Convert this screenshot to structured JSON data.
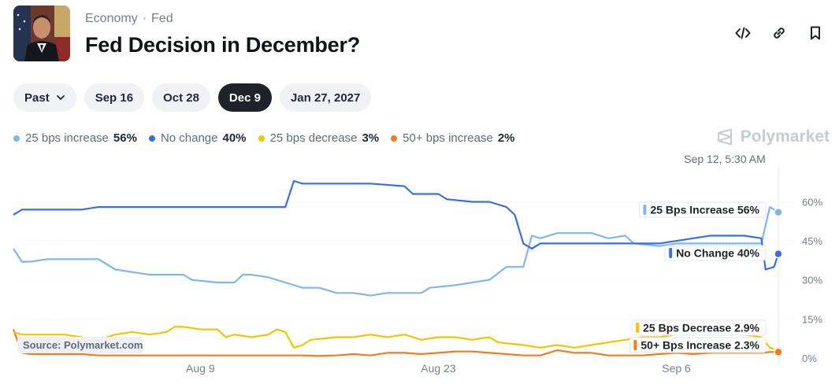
{
  "header": {
    "breadcrumb": [
      "Economy",
      "Fed"
    ],
    "title": "Fed Decision in December?"
  },
  "actions": [
    {
      "name": "embed-icon"
    },
    {
      "name": "link-icon"
    },
    {
      "name": "bookmark-icon"
    }
  ],
  "filters": {
    "past_label": "Past",
    "dates": [
      "Sep 16",
      "Oct 28",
      "Dec 9",
      "Jan 27, 2027"
    ],
    "active": "Dec 9"
  },
  "legend": [
    {
      "label": "25 bps increase",
      "pct": "56%",
      "color": "#7fb6f2"
    },
    {
      "label": "No change",
      "pct": "40%",
      "color": "#3b6fe0"
    },
    {
      "label": "25 bps decrease",
      "pct": "3%",
      "color": "#f5c400"
    },
    {
      "label": "50+ bps increase",
      "pct": "2%",
      "color": "#f27c1c"
    }
  ],
  "brand": "Polymarket",
  "chart_data": {
    "type": "line",
    "hover_label": "Sep 12, 5:30 AM",
    "source": "Source: Polymarket.com",
    "x_ticks": [
      {
        "label": "Aug 9",
        "x": "2025-08-09"
      },
      {
        "label": "Aug 23",
        "x": "2025-08-23"
      },
      {
        "label": "Sep 6",
        "x": "2025-09-06"
      }
    ],
    "x_range": [
      "2025-07-29",
      "2025-09-12"
    ],
    "y_ticks": [
      {
        "label": "60%",
        "v": 60
      },
      {
        "label": "45%",
        "v": 45
      },
      {
        "label": "30%",
        "v": 30
      },
      {
        "label": "15%",
        "v": 15
      },
      {
        "label": "0%",
        "v": 0
      }
    ],
    "ylim": [
      0,
      68
    ],
    "series": [
      {
        "name": "25 Bps Increase",
        "end_label": "25 Bps Increase 56%",
        "color": "#7fb6f2",
        "points": [
          [
            "2025-07-29",
            42
          ],
          [
            "2025-07-29T12:00",
            37
          ],
          [
            "2025-07-30",
            37
          ],
          [
            "2025-07-31",
            38
          ],
          [
            "2025-08-02",
            38
          ],
          [
            "2025-08-03",
            38
          ],
          [
            "2025-08-03T12:00",
            36
          ],
          [
            "2025-08-04",
            34
          ],
          [
            "2025-08-05",
            33
          ],
          [
            "2025-08-06",
            32
          ],
          [
            "2025-08-08",
            32
          ],
          [
            "2025-08-08T12:00",
            30
          ],
          [
            "2025-08-10",
            29
          ],
          [
            "2025-08-11",
            29
          ],
          [
            "2025-08-11T12:00",
            32
          ],
          [
            "2025-08-12",
            32
          ],
          [
            "2025-08-13",
            31
          ],
          [
            "2025-08-14",
            29
          ],
          [
            "2025-08-15",
            27
          ],
          [
            "2025-08-16",
            27
          ],
          [
            "2025-08-17",
            25
          ],
          [
            "2025-08-18",
            25
          ],
          [
            "2025-08-19",
            24
          ],
          [
            "2025-08-20",
            25
          ],
          [
            "2025-08-22",
            25
          ],
          [
            "2025-08-22T12:00",
            27
          ],
          [
            "2025-08-24",
            28
          ],
          [
            "2025-08-25",
            29
          ],
          [
            "2025-08-26",
            30
          ],
          [
            "2025-08-27",
            35
          ],
          [
            "2025-08-28",
            35
          ],
          [
            "2025-08-28T12:00",
            47
          ],
          [
            "2025-08-29",
            46
          ],
          [
            "2025-08-30",
            48
          ],
          [
            "2025-09-01",
            48
          ],
          [
            "2025-09-02",
            46
          ],
          [
            "2025-09-03",
            47
          ],
          [
            "2025-09-03T12:00",
            44
          ],
          [
            "2025-09-05",
            43
          ],
          [
            "2025-09-06",
            44
          ],
          [
            "2025-09-07",
            44
          ],
          [
            "2025-09-08",
            44
          ],
          [
            "2025-09-09",
            44
          ],
          [
            "2025-09-10",
            44
          ],
          [
            "2025-09-11",
            44
          ],
          [
            "2025-09-11T12:00",
            58
          ],
          [
            "2025-09-12",
            56
          ]
        ]
      },
      {
        "name": "No Change",
        "end_label": "No Change 40%",
        "color": "#3b6fe0",
        "points": [
          [
            "2025-07-29",
            55
          ],
          [
            "2025-07-29T12:00",
            57
          ],
          [
            "2025-07-30",
            57
          ],
          [
            "2025-08-02",
            57
          ],
          [
            "2025-08-03",
            58
          ],
          [
            "2025-08-07",
            58
          ],
          [
            "2025-08-10",
            58
          ],
          [
            "2025-08-14",
            58
          ],
          [
            "2025-08-14T12:00",
            68
          ],
          [
            "2025-08-15",
            67
          ],
          [
            "2025-08-19",
            67
          ],
          [
            "2025-08-21",
            66
          ],
          [
            "2025-08-21T12:00",
            63
          ],
          [
            "2025-08-23",
            63
          ],
          [
            "2025-08-23T12:00",
            61
          ],
          [
            "2025-08-25",
            60
          ],
          [
            "2025-08-26",
            60
          ],
          [
            "2025-08-27",
            58
          ],
          [
            "2025-08-27T12:00",
            55
          ],
          [
            "2025-08-28",
            44
          ],
          [
            "2025-08-28T12:00",
            42
          ],
          [
            "2025-08-29",
            44
          ],
          [
            "2025-09-01",
            44
          ],
          [
            "2025-09-03",
            44
          ],
          [
            "2025-09-05",
            44
          ],
          [
            "2025-09-07",
            46
          ],
          [
            "2025-09-08",
            47
          ],
          [
            "2025-09-09",
            47
          ],
          [
            "2025-09-10",
            47
          ],
          [
            "2025-09-11",
            46
          ],
          [
            "2025-09-11T06:00",
            34
          ],
          [
            "2025-09-11T18:00",
            35
          ],
          [
            "2025-09-12",
            40
          ]
        ]
      },
      {
        "name": "25 Bps Decrease",
        "end_label": "25 Bps Decrease 2.9%",
        "color": "#f5c400",
        "points": [
          [
            "2025-07-29",
            10
          ],
          [
            "2025-07-29T12:00",
            9
          ],
          [
            "2025-07-30",
            9
          ],
          [
            "2025-08-01",
            9
          ],
          [
            "2025-08-02",
            8
          ],
          [
            "2025-08-03",
            7
          ],
          [
            "2025-08-04",
            9
          ],
          [
            "2025-08-05",
            10
          ],
          [
            "2025-08-06",
            9
          ],
          [
            "2025-08-07",
            10
          ],
          [
            "2025-08-07T12:00",
            12
          ],
          [
            "2025-08-08",
            12
          ],
          [
            "2025-08-09",
            11
          ],
          [
            "2025-08-10",
            11
          ],
          [
            "2025-08-10T12:00",
            8
          ],
          [
            "2025-08-11",
            9
          ],
          [
            "2025-08-12",
            8
          ],
          [
            "2025-08-13",
            9
          ],
          [
            "2025-08-13T12:00",
            11
          ],
          [
            "2025-08-14",
            10
          ],
          [
            "2025-08-14T12:00",
            4
          ],
          [
            "2025-08-15",
            5
          ],
          [
            "2025-08-15T12:00",
            7
          ],
          [
            "2025-08-17",
            8
          ],
          [
            "2025-08-18",
            8
          ],
          [
            "2025-08-19",
            9
          ],
          [
            "2025-08-20",
            8
          ],
          [
            "2025-08-21",
            9
          ],
          [
            "2025-08-22",
            7
          ],
          [
            "2025-08-23",
            8
          ],
          [
            "2025-08-24",
            8
          ],
          [
            "2025-08-25",
            7
          ],
          [
            "2025-08-26",
            8
          ],
          [
            "2025-08-26T12:00",
            6
          ],
          [
            "2025-08-28",
            5
          ],
          [
            "2025-08-29",
            4
          ],
          [
            "2025-08-30",
            5
          ],
          [
            "2025-08-31",
            4
          ],
          [
            "2025-09-01",
            5
          ],
          [
            "2025-09-02",
            6
          ],
          [
            "2025-09-03",
            7
          ],
          [
            "2025-09-04",
            8
          ],
          [
            "2025-09-05",
            8
          ],
          [
            "2025-09-06",
            9
          ],
          [
            "2025-09-08",
            9
          ],
          [
            "2025-09-09",
            9
          ],
          [
            "2025-09-10",
            9
          ],
          [
            "2025-09-11",
            8
          ],
          [
            "2025-09-11T12:00",
            4
          ],
          [
            "2025-09-12",
            2.9
          ]
        ]
      },
      {
        "name": "50+ Bps Increase",
        "end_label": "50+ Bps Increase 2.3%",
        "color": "#f27c1c",
        "points": [
          [
            "2025-07-29",
            11
          ],
          [
            "2025-07-29T12:00",
            2
          ],
          [
            "2025-07-30",
            1.5
          ],
          [
            "2025-08-02",
            1.5
          ],
          [
            "2025-08-03",
            1
          ],
          [
            "2025-08-06",
            1
          ],
          [
            "2025-08-10",
            1
          ],
          [
            "2025-08-14",
            1
          ],
          [
            "2025-08-15",
            1
          ],
          [
            "2025-08-16",
            0.8
          ],
          [
            "2025-08-17",
            1
          ],
          [
            "2025-08-18",
            1.5
          ],
          [
            "2025-08-19",
            1
          ],
          [
            "2025-08-20",
            2
          ],
          [
            "2025-08-21",
            2
          ],
          [
            "2025-08-22",
            1.5
          ],
          [
            "2025-08-23",
            2
          ],
          [
            "2025-08-24",
            2.5
          ],
          [
            "2025-08-25",
            2.5
          ],
          [
            "2025-08-26",
            2
          ],
          [
            "2025-08-27",
            1.5
          ],
          [
            "2025-08-28",
            1
          ],
          [
            "2025-08-29",
            1
          ],
          [
            "2025-08-30",
            3
          ],
          [
            "2025-08-31",
            2
          ],
          [
            "2025-09-01",
            2
          ],
          [
            "2025-09-02",
            1
          ],
          [
            "2025-09-03",
            1
          ],
          [
            "2025-09-04",
            1
          ],
          [
            "2025-09-05",
            1.5
          ],
          [
            "2025-09-06",
            2
          ],
          [
            "2025-09-07",
            1.5
          ],
          [
            "2025-09-08",
            2
          ],
          [
            "2025-09-09",
            2
          ],
          [
            "2025-09-10",
            2
          ],
          [
            "2025-09-11",
            2
          ],
          [
            "2025-09-11T12:00",
            2.3
          ],
          [
            "2025-09-12",
            2.3
          ]
        ]
      }
    ]
  }
}
